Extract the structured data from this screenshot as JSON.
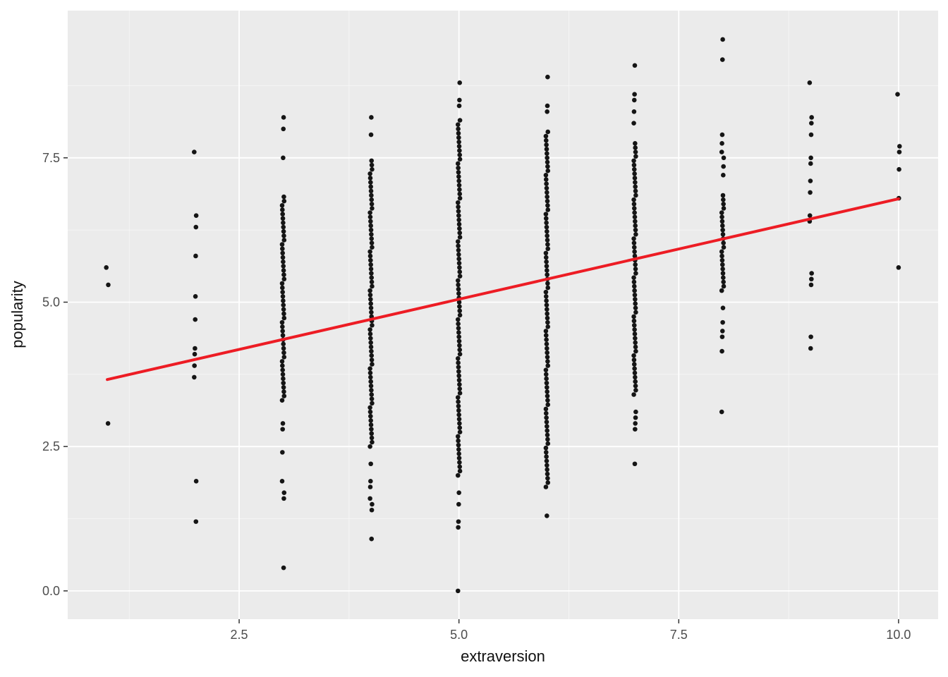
{
  "figure": {
    "background": "#FFFFFF",
    "panel_background": "#EBEBEB",
    "grid_major_color": "#FFFFFF",
    "grid_minor_color": "#F6F6F6",
    "tick_label_color": "#4D4D4D",
    "axis_title_color": "#111111",
    "tick_mark_color": "#333333"
  },
  "chart_data": {
    "type": "scatter",
    "title": "",
    "xlabel": "extraversion",
    "ylabel": "popularity",
    "x_domain": [
      0.55,
      10.45
    ],
    "y_domain": [
      -0.49,
      10.05
    ],
    "x_ticks": [
      {
        "value": 2.5,
        "label": "2.5"
      },
      {
        "value": 5.0,
        "label": "5.0"
      },
      {
        "value": 7.5,
        "label": "7.5"
      },
      {
        "value": 10.0,
        "label": "10.0"
      }
    ],
    "y_ticks": [
      {
        "value": 0.0,
        "label": "0.0"
      },
      {
        "value": 2.5,
        "label": "2.5"
      },
      {
        "value": 5.0,
        "label": "5.0"
      },
      {
        "value": 7.5,
        "label": "7.5"
      }
    ],
    "x_minor_ticks": [
      1.25,
      3.75,
      6.25,
      8.75
    ],
    "y_minor_ticks": [
      1.25,
      3.75,
      6.25,
      8.75
    ],
    "grid": true,
    "legend": "none",
    "point_color": "#151515",
    "point_radius": 3.3,
    "dense_step": 0.075,
    "columns": [
      {
        "x": 1,
        "points": [
          5.6,
          5.3,
          2.9
        ],
        "dense": []
      },
      {
        "x": 2,
        "points": [
          7.6,
          6.5,
          6.3,
          5.8,
          5.1,
          4.7,
          4.2,
          4.1,
          3.9,
          3.7,
          1.9,
          1.2
        ],
        "dense": []
      },
      {
        "x": 3,
        "points": [
          8.2,
          8.0,
          7.5,
          2.9,
          2.8,
          2.4,
          1.9,
          1.7,
          1.6,
          0.4
        ],
        "dense": [
          [
            3.3,
            6.85
          ]
        ]
      },
      {
        "x": 4,
        "points": [
          8.2,
          7.9,
          2.2,
          1.9,
          1.8,
          1.6,
          1.5,
          1.4,
          0.9
        ],
        "dense": [
          [
            2.5,
            7.5
          ]
        ]
      },
      {
        "x": 5,
        "points": [
          8.8,
          8.5,
          8.4,
          1.7,
          1.5,
          1.2,
          1.1,
          0.0
        ],
        "dense": [
          [
            2.0,
            8.2
          ]
        ]
      },
      {
        "x": 6,
        "points": [
          8.9,
          8.4,
          8.3,
          1.3
        ],
        "dense": [
          [
            1.8,
            8.0
          ]
        ]
      },
      {
        "x": 7,
        "points": [
          9.1,
          8.6,
          8.5,
          8.3,
          8.1,
          3.1,
          3.0,
          2.9,
          2.8,
          2.2
        ],
        "dense": [
          [
            3.4,
            7.8
          ]
        ]
      },
      {
        "x": 8,
        "points": [
          9.55,
          9.2,
          7.9,
          7.75,
          7.6,
          7.5,
          7.35,
          7.2,
          4.9,
          4.65,
          4.5,
          4.4,
          4.15,
          3.1
        ],
        "dense": [
          [
            5.2,
            6.9
          ]
        ]
      },
      {
        "x": 9,
        "points": [
          8.8,
          8.2,
          8.1,
          7.9,
          7.5,
          7.4,
          7.1,
          6.9,
          6.5,
          6.4,
          5.5,
          5.4,
          5.3,
          4.4,
          4.2
        ],
        "dense": []
      },
      {
        "x": 10,
        "points": [
          8.6,
          7.7,
          7.6,
          7.3,
          6.8,
          5.6
        ],
        "dense": []
      }
    ],
    "regression_line": {
      "x1": 1.0,
      "y1": 3.66,
      "x2": 10.0,
      "y2": 6.79,
      "color": "#ED1C24",
      "width": 4
    }
  }
}
